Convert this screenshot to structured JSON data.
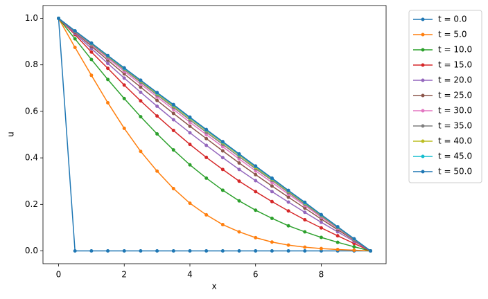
{
  "chart_data": {
    "type": "line",
    "x_label": "x",
    "y_label": "u",
    "x": [
      0,
      0.5,
      1,
      1.5,
      2,
      2.5,
      3,
      3.5,
      4,
      4.5,
      5,
      5.5,
      6,
      6.5,
      7,
      7.5,
      8,
      8.5,
      9,
      9.5
    ],
    "xlim": [
      -0.475,
      9.975
    ],
    "xticks": [
      0,
      2,
      4,
      6,
      8
    ],
    "ylim": [
      -0.055,
      1.055
    ],
    "yticks": [
      {
        "value": 0,
        "label": "0.0"
      },
      {
        "value": 0.2,
        "label": "0.2"
      },
      {
        "value": 0.4,
        "label": "0.4"
      },
      {
        "value": 0.6,
        "label": "0.6"
      },
      {
        "value": 0.8,
        "label": "0.8"
      },
      {
        "value": 1,
        "label": "1.0"
      }
    ],
    "grid": false,
    "legend": "outside-upper-right",
    "series": [
      {
        "name": "t = 0.0",
        "color": "#1f77b4",
        "values": [
          1,
          0,
          0,
          0,
          0,
          0,
          0,
          0,
          0,
          0,
          0,
          0,
          0,
          0,
          0,
          0,
          0,
          0,
          0,
          0
        ]
      },
      {
        "name": "t = 5.0",
        "color": "#ff7f0e",
        "values": [
          1,
          0.875,
          0.755,
          0.637,
          0.527,
          0.428,
          0.343,
          0.268,
          0.205,
          0.155,
          0.113,
          0.082,
          0.057,
          0.038,
          0.025,
          0.016,
          0.01,
          0.006,
          0.003,
          0
        ]
      },
      {
        "name": "t = 10.0",
        "color": "#2ca02c",
        "values": [
          1,
          0.912,
          0.823,
          0.737,
          0.655,
          0.577,
          0.503,
          0.434,
          0.37,
          0.313,
          0.261,
          0.215,
          0.175,
          0.14,
          0.108,
          0.082,
          0.058,
          0.037,
          0.018,
          0
        ]
      },
      {
        "name": "t = 15.0",
        "color": "#d62728",
        "values": [
          1,
          0.93,
          0.855,
          0.785,
          0.713,
          0.645,
          0.58,
          0.518,
          0.458,
          0.402,
          0.35,
          0.3,
          0.255,
          0.212,
          0.172,
          0.134,
          0.099,
          0.065,
          0.032,
          0
        ]
      },
      {
        "name": "t = 20.0",
        "color": "#9467bd",
        "values": [
          1,
          0.935,
          0.87,
          0.806,
          0.743,
          0.682,
          0.622,
          0.564,
          0.508,
          0.454,
          0.401,
          0.35,
          0.302,
          0.255,
          0.21,
          0.166,
          0.123,
          0.082,
          0.041,
          0
        ]
      },
      {
        "name": "t = 25.0",
        "color": "#8c564b",
        "values": [
          1,
          0.94,
          0.88,
          0.82,
          0.761,
          0.704,
          0.647,
          0.591,
          0.536,
          0.483,
          0.43,
          0.378,
          0.328,
          0.279,
          0.231,
          0.184,
          0.137,
          0.091,
          0.046,
          0
        ]
      },
      {
        "name": "t = 30.0",
        "color": "#e377c2",
        "values": [
          1,
          0.943,
          0.886,
          0.829,
          0.772,
          0.717,
          0.662,
          0.608,
          0.553,
          0.5,
          0.448,
          0.395,
          0.344,
          0.294,
          0.244,
          0.195,
          0.145,
          0.097,
          0.049,
          0
        ]
      },
      {
        "name": "t = 35.0",
        "color": "#7f7f7f",
        "values": [
          1,
          0.944,
          0.889,
          0.834,
          0.779,
          0.725,
          0.67,
          0.617,
          0.563,
          0.51,
          0.458,
          0.405,
          0.353,
          0.303,
          0.251,
          0.201,
          0.15,
          0.1,
          0.05,
          0
        ]
      },
      {
        "name": "t = 40.0",
        "color": "#bcbd22",
        "values": [
          1,
          0.945,
          0.892,
          0.837,
          0.783,
          0.73,
          0.676,
          0.623,
          0.57,
          0.517,
          0.465,
          0.412,
          0.359,
          0.308,
          0.256,
          0.205,
          0.153,
          0.102,
          0.051,
          0
        ]
      },
      {
        "name": "t = 45.0",
        "color": "#17becf",
        "values": [
          1,
          0.946,
          0.893,
          0.839,
          0.785,
          0.733,
          0.679,
          0.627,
          0.573,
          0.52,
          0.468,
          0.415,
          0.363,
          0.311,
          0.259,
          0.207,
          0.155,
          0.103,
          0.052,
          0
        ]
      },
      {
        "name": "t = 50.0",
        "color": "#1f77b4",
        "values": [
          1,
          0.946,
          0.894,
          0.84,
          0.787,
          0.734,
          0.681,
          0.629,
          0.575,
          0.522,
          0.47,
          0.417,
          0.365,
          0.313,
          0.26,
          0.209,
          0.156,
          0.104,
          0.052,
          0
        ]
      }
    ]
  }
}
